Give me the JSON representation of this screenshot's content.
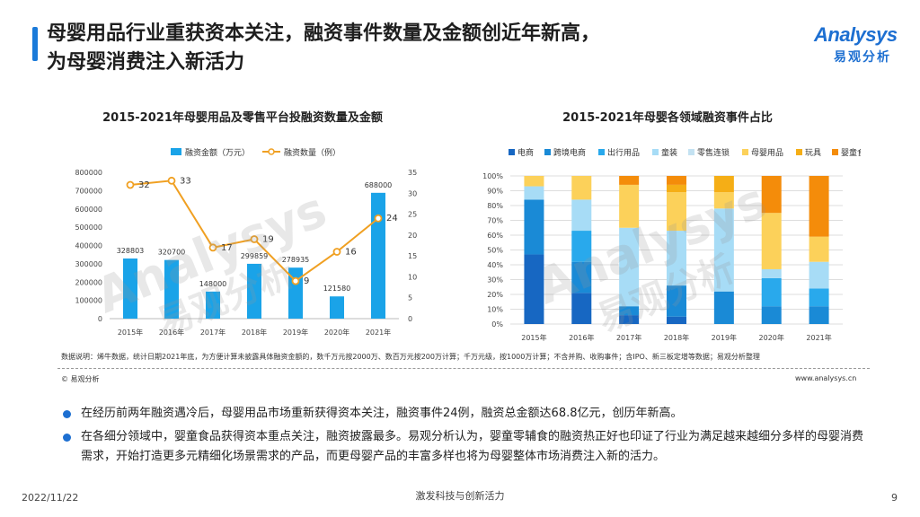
{
  "header": {
    "title_line1": "母婴用品行业重获资本关注，融资事件数量及金额创近年新高，",
    "title_line2": "为母婴消费注入新活力"
  },
  "logo": {
    "brand": "Analysys",
    "cn": "易观分析"
  },
  "watermark": {
    "brand": "Analysys",
    "cn": "易观分析"
  },
  "chart_data": [
    {
      "type": "bar",
      "title": "2015-2021年母婴用品及零售平台投融资数量及金额",
      "categories": [
        "2015年",
        "2016年",
        "2017年",
        "2018年",
        "2019年",
        "2020年",
        "2021年"
      ],
      "series": [
        {
          "name": "融资金额（万元）",
          "type": "bar",
          "axis": "left",
          "color": "#1aa3e8",
          "values": [
            328803,
            320700,
            148000,
            299859,
            278935,
            121580,
            688000
          ]
        },
        {
          "name": "融资数量（例）",
          "type": "line",
          "axis": "right",
          "color": "#f0a022",
          "values": [
            32,
            33,
            17,
            19,
            9,
            16,
            24
          ]
        }
      ],
      "ylim_left": [
        0,
        800000
      ],
      "yticks_left": [
        "0",
        "100000",
        "200000",
        "300000",
        "400000",
        "500000",
        "600000",
        "700000",
        "800000"
      ],
      "ylim_right": [
        0,
        35
      ],
      "yticks_right": [
        "0",
        "5",
        "10",
        "15",
        "20",
        "25",
        "30",
        "35"
      ],
      "legend_position": "top"
    },
    {
      "type": "bar",
      "stacked": true,
      "title": "2015-2021年母婴各领域融资事件占比",
      "categories": [
        "2015年",
        "2016年",
        "2017年",
        "2018年",
        "2019年",
        "2020年",
        "2021年"
      ],
      "series": [
        {
          "name": "电商",
          "color": "#1767c2",
          "values": [
            47,
            21,
            6,
            5,
            0,
            0,
            0
          ]
        },
        {
          "name": "跨境电商",
          "color": "#1a8ad6",
          "values": [
            37,
            21,
            6,
            21,
            22,
            12,
            12
          ]
        },
        {
          "name": "出行用品",
          "color": "#29a9ec",
          "values": [
            0,
            21,
            0,
            0,
            0,
            19,
            12
          ]
        },
        {
          "name": "童装",
          "color": "#a7dcf6",
          "values": [
            9,
            21,
            53,
            37,
            56,
            6,
            18
          ]
        },
        {
          "name": "零售连锁",
          "color": "#c4e2f2",
          "values": [
            0,
            0,
            0,
            0,
            0,
            0,
            0
          ]
        },
        {
          "name": "母婴用品",
          "color": "#fcd15a",
          "values": [
            7,
            16,
            29,
            26,
            11,
            38,
            17
          ]
        },
        {
          "name": "玩具",
          "color": "#f5ae16",
          "values": [
            0,
            0,
            0,
            5,
            11,
            0,
            0
          ]
        },
        {
          "name": "婴童食品",
          "color": "#f48c0a",
          "values": [
            0,
            0,
            6,
            6,
            0,
            25,
            41
          ]
        }
      ],
      "ylim": [
        0,
        100
      ],
      "yticks": [
        "0%",
        "10%",
        "20%",
        "30%",
        "40%",
        "50%",
        "60%",
        "70%",
        "80%",
        "90%",
        "100%"
      ],
      "legend_position": "top"
    }
  ],
  "note": "数据说明：烯牛数据，统计日期2021年底，为方便计算未披露具体融资金额的，数千万元按2000万、数百万元按200万计算；千万元级，按1000万计算；不含并购、收购事件；含IPO、新三板定增等数据；易观分析整理",
  "source": "© 易观分析",
  "website": "www.analysys.cn",
  "bullets": [
    "在经历前两年融资遇冷后，母婴用品市场重新获得资本关注，融资事件24例，融资总金额达68.8亿元，创历年新高。",
    "在各细分领域中，婴童食品获得资本重点关注，融资披露最多。易观分析认为，婴童零辅食的融资热正好也印证了行业为满足越来越细分多样的母婴消费需求，开始打造更多元精细化场景需求的产品，而更母婴产品的丰富多样也将为母婴整体市场消费注入新的活力。"
  ],
  "footer": {
    "date": "2022/11/22",
    "center": "激发科技与创新活力",
    "page": "9"
  },
  "colors": {
    "accent": "#1a7ad9",
    "brand": "#1d6fd1"
  }
}
